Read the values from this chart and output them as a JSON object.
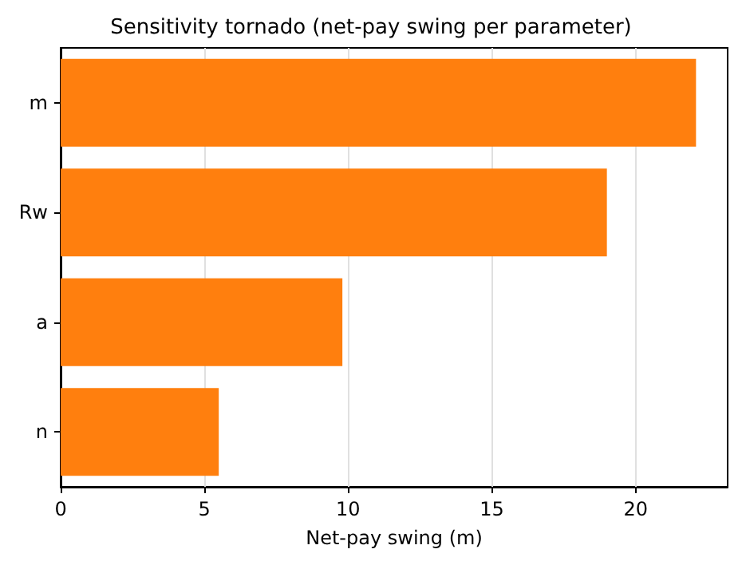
{
  "chart_data": {
    "type": "bar",
    "orientation": "horizontal",
    "title": "Sensitivity tornado (net-pay swing per parameter)",
    "xlabel": "Net-pay swing (m)",
    "categories": [
      "m",
      "Rw",
      "a",
      "n"
    ],
    "values": [
      22.1,
      19.0,
      9.8,
      5.5
    ],
    "color": "#ff7f0e",
    "xlim": [
      0,
      23.2
    ],
    "xticks": [
      0,
      5,
      10,
      15,
      20
    ],
    "grid": "x"
  }
}
